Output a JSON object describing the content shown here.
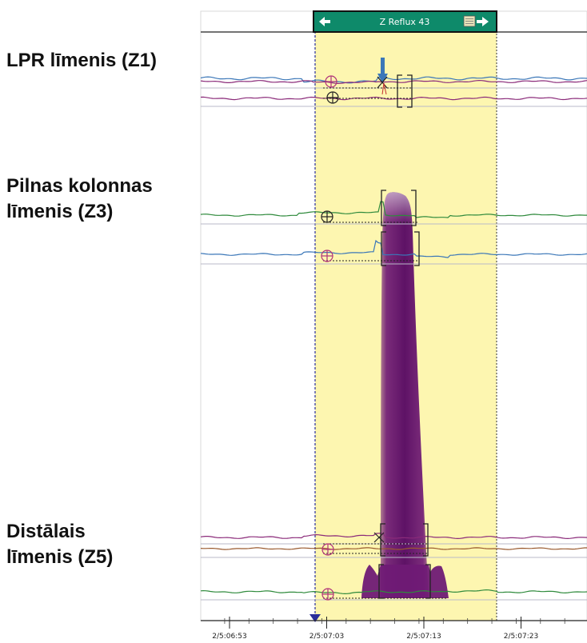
{
  "labels": {
    "z1": "LPR līmenis (Z1)",
    "z3": "Pilnas kolonnas\nlīmenis (Z3)",
    "z5": "Distālais\nlīmenis (Z5)"
  },
  "event_banner": {
    "title": "Z Reflux 43",
    "left_icon": "arrow-left-icon",
    "right_icon": "notes-arrow-right-icon",
    "color": "#0e8a6a"
  },
  "colors": {
    "highlight": "#fdf6b0",
    "bolus": "#6f1a75",
    "impedance_blue": "#3b77b8",
    "impedance_green": "#2f8a3c",
    "impedance_purple": "#8b2b7a",
    "impedance_brown": "#9a5a2f",
    "marker_magenta": "#b0337a",
    "marker_dark": "#222222"
  },
  "chart_data": {
    "type": "line",
    "x_axis": {
      "tick_labels": [
        "2/5:06:53",
        "2/5:07:03",
        "2/5:07:13",
        "2/5:07:23"
      ],
      "tick_seconds": [
        0,
        10,
        20,
        30
      ],
      "range_seconds": [
        -3,
        37
      ]
    },
    "event_window_seconds": [
      10.8,
      29.2
    ],
    "bolus_peak_seconds": 20.3,
    "channels": [
      {
        "zone": "Z1",
        "traces": 3,
        "reflux_marker_seconds": 17.2
      },
      {
        "zone": "Z3",
        "traces": 2,
        "reflux_marker_seconds": 17.6
      },
      {
        "zone": "Z5",
        "traces": 3,
        "reflux_marker_seconds": 17.6
      }
    ],
    "grid": false
  }
}
